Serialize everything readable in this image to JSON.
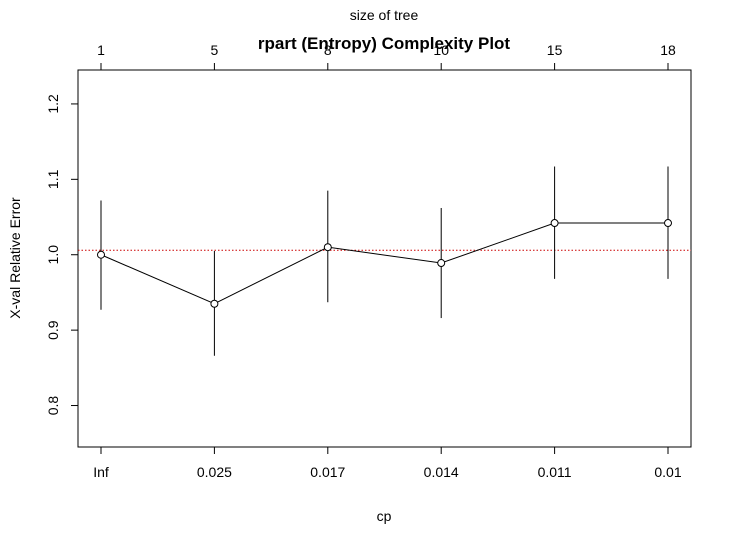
{
  "chart_data": {
    "type": "line",
    "title": "rpart (Entropy) Complexity Plot",
    "xlabel": "cp",
    "ylabel": "X-val Relative Error",
    "top_axis_label": "size of tree",
    "categories": [
      "Inf",
      "0.025",
      "0.017",
      "0.014",
      "0.011",
      "0.01"
    ],
    "size_of_tree": [
      "1",
      "5",
      "8",
      "10",
      "15",
      "18"
    ],
    "y_ticks": [
      "0.8",
      "0.9",
      "1.0",
      "1.1",
      "1.2"
    ],
    "y_tick_values": [
      0.8,
      0.9,
      1.0,
      1.1,
      1.2
    ],
    "ylim": [
      0.745,
      1.245
    ],
    "reference_line": 1.006,
    "series": [
      {
        "values": [
          1.0,
          0.935,
          1.01,
          0.989,
          1.042,
          1.042
        ],
        "error_upper": [
          1.072,
          1.005,
          1.085,
          1.062,
          1.117,
          1.117
        ],
        "error_lower": [
          0.927,
          0.866,
          0.937,
          0.916,
          0.968,
          0.968
        ]
      }
    ],
    "grid": false,
    "colors": {
      "line": "#000000",
      "reference_line": "#cc0000"
    }
  }
}
